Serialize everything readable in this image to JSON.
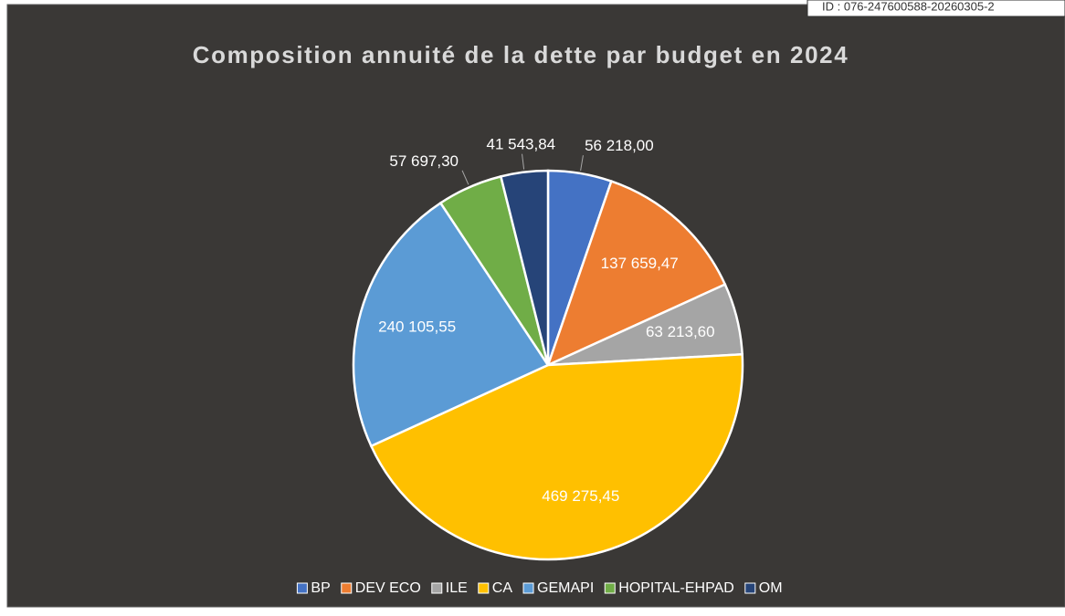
{
  "chart_data": {
    "type": "pie",
    "title": "Composition annuité de la dette par budget en 2024",
    "annotation": "ID : 076-247600588-20260305-2",
    "categories": [
      "BP",
      "DEV ECO",
      "ILE",
      "CA",
      "GEMAPI",
      "HOPITAL-EHPAD",
      "OM"
    ],
    "values": [
      56218.0,
      137659.47,
      63213.6,
      469275.45,
      240105.55,
      57697.3,
      41543.84
    ],
    "value_labels": [
      "56 218,00",
      "137 659,47",
      "63 213,60",
      "469 275,45",
      "240 105,55",
      "57 697,30",
      "41 543,84"
    ],
    "colors": [
      "#4472c4",
      "#ed7d31",
      "#a5a5a5",
      "#ffc000",
      "#5b9bd5",
      "#70ad47",
      "#264478"
    ],
    "legend": "bottom"
  }
}
